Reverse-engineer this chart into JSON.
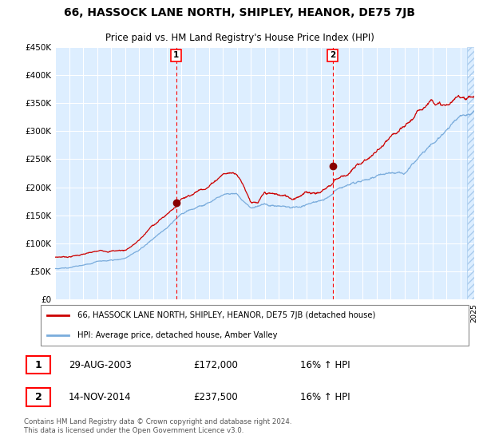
{
  "title": "66, HASSOCK LANE NORTH, SHIPLEY, HEANOR, DE75 7JB",
  "subtitle": "Price paid vs. HM Land Registry's House Price Index (HPI)",
  "yticks": [
    0,
    50000,
    100000,
    150000,
    200000,
    250000,
    300000,
    350000,
    400000,
    450000
  ],
  "ytick_labels": [
    "£0",
    "£50K",
    "£100K",
    "£150K",
    "£200K",
    "£250K",
    "£300K",
    "£350K",
    "£400K",
    "£450K"
  ],
  "xmin": 1995,
  "xmax": 2025,
  "ymin": 0,
  "ymax": 450000,
  "sale1_x": 2003.66,
  "sale1_y": 172000,
  "sale2_x": 2014.87,
  "sale2_y": 237500,
  "line_color_red": "#cc0000",
  "line_color_blue": "#7aacdc",
  "background_color": "#ffffff",
  "plot_bg_color": "#ddeeff",
  "grid_color": "#ffffff",
  "hatch_start": 2024.5,
  "legend_label_red": "66, HASSOCK LANE NORTH, SHIPLEY, HEANOR, DE75 7JB (detached house)",
  "legend_label_blue": "HPI: Average price, detached house, Amber Valley",
  "sale1_date": "29-AUG-2003",
  "sale1_price": "£172,000",
  "sale1_hpi": "16% ↑ HPI",
  "sale2_date": "14-NOV-2014",
  "sale2_price": "£237,500",
  "sale2_hpi": "16% ↑ HPI",
  "footer": "Contains HM Land Registry data © Crown copyright and database right 2024.\nThis data is licensed under the Open Government Licence v3.0."
}
